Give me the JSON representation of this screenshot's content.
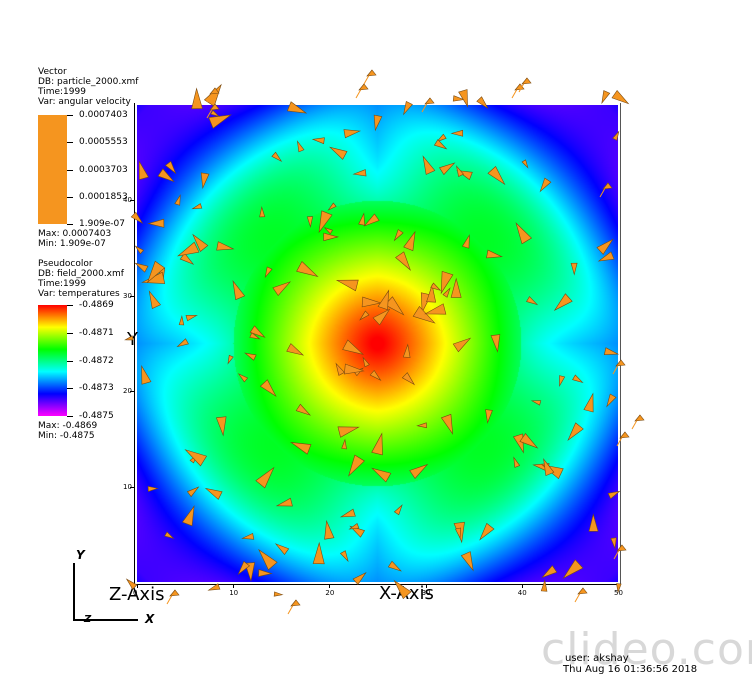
{
  "vector_legend": {
    "plot_type": "Vector",
    "db": "DB: particle_2000.xmf",
    "time": "Time:1999",
    "var": "Var: angular velocity",
    "ticks": [
      "0.0007403",
      "0.0005553",
      "0.0003703",
      "0.0001853",
      "1.909e-07"
    ],
    "max": "Max:  0.0007403",
    "min": "Min:  1.909e-07",
    "color": "#f5951f"
  },
  "pseudocolor_legend": {
    "plot_type": "Pseudocolor",
    "db": "DB: field_2000.xmf",
    "time": "Time:1999",
    "var": "Var: temperatures",
    "ticks": [
      "-0.4869",
      "-0.4871",
      "-0.4872",
      "-0.4873",
      "-0.4875"
    ],
    "max": "Max: -0.4869",
    "min": "Min: -0.4875"
  },
  "axes": {
    "x_title": "X-Axis",
    "z_title": "Z-Axis",
    "y_title": "Y",
    "x_ticks": [
      "0",
      "10",
      "20",
      "30",
      "40",
      "50"
    ],
    "y_ticks": [
      "10",
      "20",
      "30",
      "40"
    ],
    "x_range": [
      0,
      50
    ],
    "y_range": [
      0,
      50
    ]
  },
  "triad": {
    "x_label": "X",
    "y_label": "Y",
    "z_label": "Z"
  },
  "footer": {
    "user": "user: akshay",
    "timestamp": "Thu Aug 16 01:36:56 2018"
  },
  "watermark": "clideo.com",
  "chart_data": {
    "type": "heatmap",
    "title": "",
    "xlabel": "X-Axis",
    "ylabel": "Y",
    "xlim": [
      0,
      50
    ],
    "ylim": [
      0,
      50
    ],
    "colormap": [
      "#ff00ff",
      "#0000ff",
      "#00ffff",
      "#00ff00",
      "#ffff00",
      "#ff0000"
    ],
    "value_range": [
      -0.4875,
      -0.4869
    ],
    "description_values": {
      "center_max": -0.4869,
      "corner_min": -0.4875
    }
  }
}
